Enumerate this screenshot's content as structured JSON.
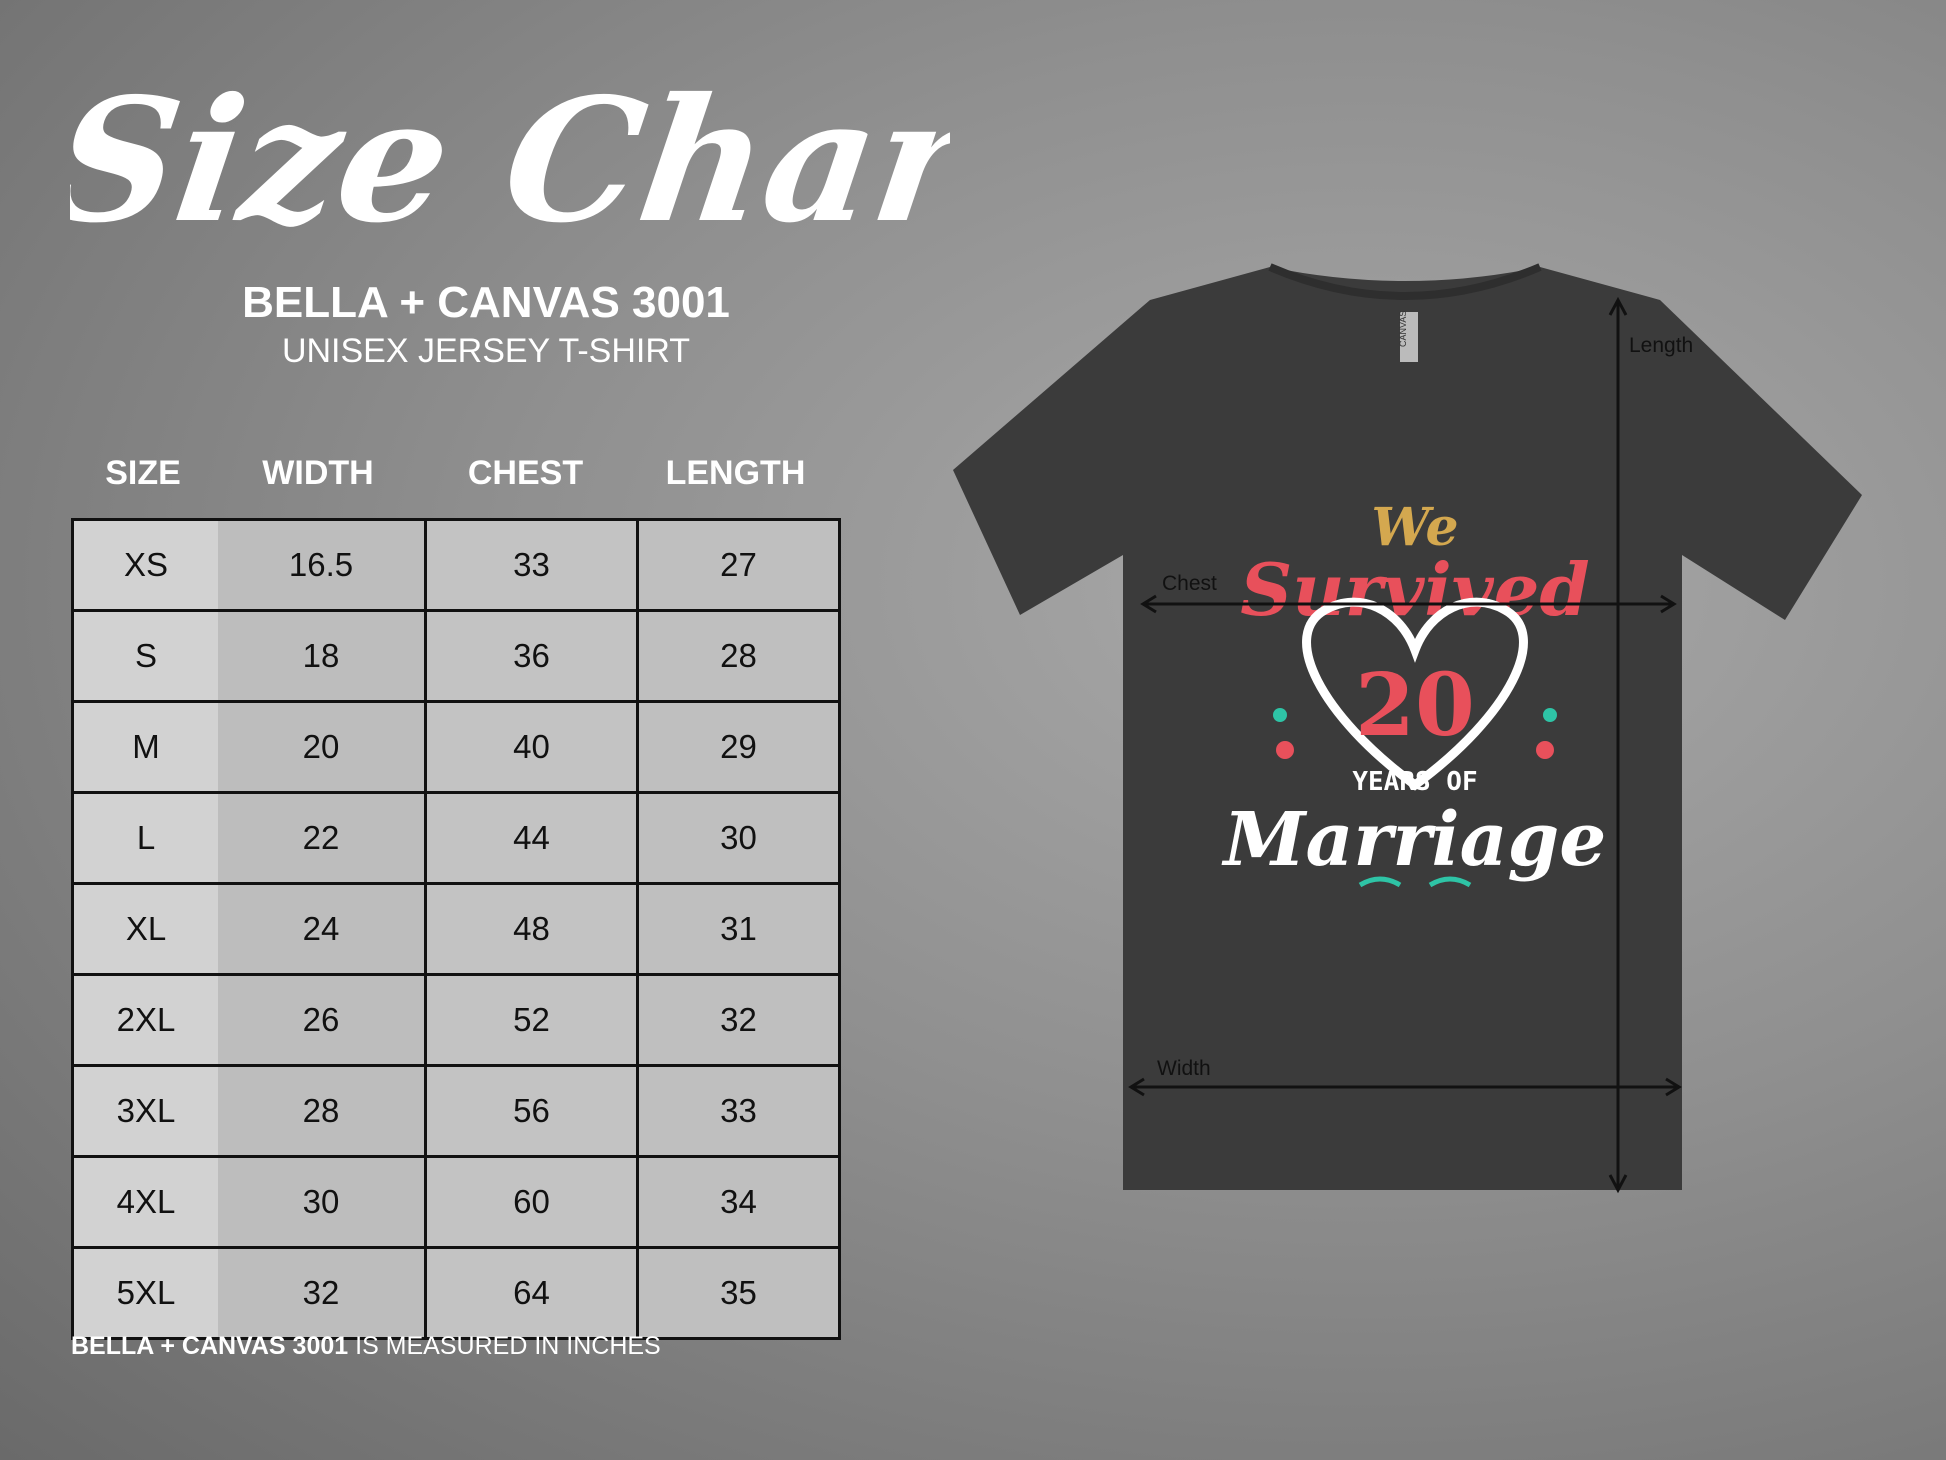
{
  "header": {
    "title": "Size Chart",
    "brand": "BELLA + CANVAS 3001",
    "model": "UNISEX JERSEY T-SHIRT"
  },
  "table": {
    "columns": [
      "SIZE",
      "WIDTH",
      "CHEST",
      "LENGTH"
    ],
    "rows": [
      [
        "XS",
        "16.5",
        "33",
        "27"
      ],
      [
        "S",
        "18",
        "36",
        "28"
      ],
      [
        "M",
        "20",
        "40",
        "29"
      ],
      [
        "L",
        "22",
        "44",
        "30"
      ],
      [
        "XL",
        "24",
        "48",
        "31"
      ],
      [
        "2XL",
        "26",
        "52",
        "32"
      ],
      [
        "3XL",
        "28",
        "56",
        "33"
      ],
      [
        "4XL",
        "30",
        "60",
        "34"
      ],
      [
        "5XL",
        "32",
        "64",
        "35"
      ]
    ]
  },
  "footer": {
    "brand": "BELLA + CANVAS 3001",
    "text": " IS MEASURED IN INCHES"
  },
  "shirt": {
    "color": "#3b3b3b",
    "measure_labels": {
      "length": "Length",
      "chest": "Chest",
      "width": "Width"
    },
    "print": {
      "line1": "We",
      "line2": "Survived",
      "number": "20",
      "line3": "YEARS OF",
      "line4": "Marriage"
    },
    "tag": "CANVAS"
  },
  "colors": {
    "accent_red": "#e8505b",
    "accent_gold": "#d4a84f",
    "accent_teal": "#2ec4a6"
  }
}
